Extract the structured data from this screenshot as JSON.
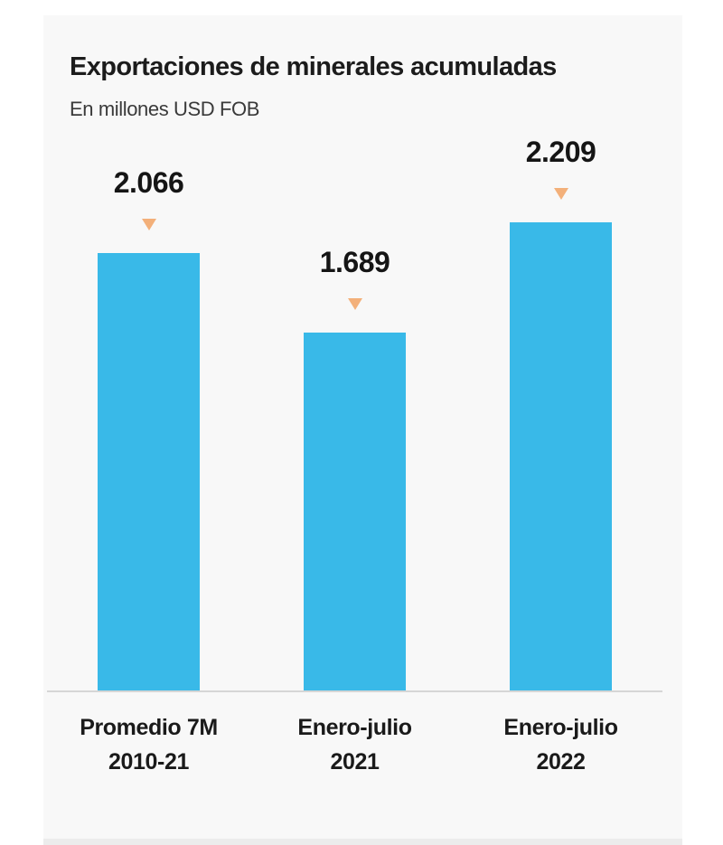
{
  "chart_data": {
    "type": "bar",
    "title": "Exportaciones de minerales acumuladas",
    "subtitle": "En millones USD FOB",
    "xlabel": "",
    "ylabel": "",
    "categories": [
      "Promedio 7M 2010-21",
      "Enero-julio 2021",
      "Enero-julio 2022"
    ],
    "values": [
      2066,
      1689,
      2209
    ],
    "value_labels": [
      "2.066",
      "1.689",
      "2.209"
    ],
    "category_lines": [
      [
        "Promedio 7M",
        "2010-21"
      ],
      [
        "Enero-julio",
        "2021"
      ],
      [
        "Enero-julio",
        "2022"
      ]
    ],
    "ylim": [
      0,
      2400
    ],
    "grid": false,
    "legend": null,
    "colors": {
      "bar": "#39b9e8",
      "marker": "#f3b07a",
      "background": "#f8f8f8",
      "baseline": "#d6d6d6"
    }
  }
}
